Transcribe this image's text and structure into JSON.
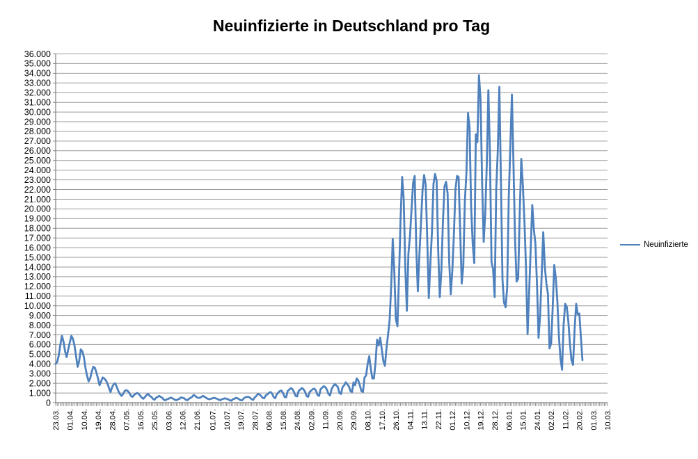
{
  "title": "Neuinfizierte in Deutschland pro Tag",
  "legend": {
    "label": "Neuinfizierte"
  },
  "colors": {
    "line": "#4F81BD",
    "grid": "#9A9A9A",
    "axis": "#808080",
    "text": "#000000",
    "background": "#FFFFFF"
  },
  "chart_data": {
    "type": "line",
    "title": "Neuinfizierte in Deutschland pro Tag",
    "xlabel": "",
    "ylabel": "",
    "ylim": [
      0,
      36000
    ],
    "y_step": 1000,
    "grid": true,
    "legend_position": "right",
    "y_tick_labels": [
      "0",
      "1.000",
      "2.000",
      "3.000",
      "4.000",
      "5.000",
      "6.000",
      "7.000",
      "8.000",
      "9.000",
      "10.000",
      "11.000",
      "12.000",
      "13.000",
      "14.000",
      "15.000",
      "16.000",
      "17.000",
      "18.000",
      "19.000",
      "20.000",
      "21.000",
      "22.000",
      "23.000",
      "24.000",
      "25.000",
      "26.000",
      "27.000",
      "28.000",
      "29.000",
      "30.000",
      "31.000",
      "32.000",
      "33.000",
      "34.000",
      "35.000",
      "36.000"
    ],
    "x_tick_labels": [
      "23.03.",
      "01.04.",
      "10.04.",
      "19.04.",
      "28.04.",
      "07.05.",
      "16.05.",
      "25.05.",
      "03.06.",
      "12.06.",
      "21.06.",
      "01.07.",
      "10.07.",
      "19.07.",
      "28.07.",
      "06.08.",
      "15.08.",
      "24.08.",
      "02.09.",
      "11.09.",
      "20.09.",
      "29.09.",
      "08.10.",
      "17.10.",
      "26.10.",
      "04.11.",
      "13.11.",
      "22.11.",
      "01.12.",
      "10.12.",
      "19.12.",
      "28.12.",
      "06.01.",
      "15.01.",
      "24.01.",
      "02.02.",
      "11.02.",
      "20.02.",
      "01.03.",
      "10.03."
    ],
    "x_tick_indices": [
      0,
      9,
      18,
      27,
      36,
      45,
      54,
      63,
      72,
      81,
      90,
      100,
      109,
      118,
      127,
      136,
      145,
      154,
      163,
      172,
      181,
      190,
      199,
      208,
      217,
      226,
      235,
      244,
      253,
      262,
      271,
      280,
      289,
      298,
      307,
      316,
      325,
      334,
      343,
      352
    ],
    "num_categories": 353,
    "series": [
      {
        "name": "Neuinfizierte",
        "color": "#4F81BD",
        "values": [
          4000,
          4200,
          4900,
          6000,
          6900,
          6300,
          5300,
          4700,
          5500,
          6200,
          6900,
          6600,
          5900,
          4800,
          3700,
          4300,
          5500,
          5300,
          4700,
          3600,
          2800,
          2200,
          2500,
          3200,
          3700,
          3600,
          3100,
          2500,
          1800,
          2200,
          2600,
          2500,
          2300,
          2000,
          1500,
          1100,
          1600,
          1900,
          2000,
          1600,
          1200,
          900,
          700,
          900,
          1200,
          1300,
          1200,
          1000,
          700,
          600,
          800,
          900,
          1000,
          900,
          700,
          500,
          400,
          600,
          800,
          900,
          700,
          600,
          400,
          300,
          500,
          600,
          700,
          600,
          500,
          300,
          250,
          350,
          400,
          500,
          500,
          400,
          300,
          250,
          350,
          400,
          550,
          500,
          450,
          300,
          250,
          400,
          500,
          600,
          800,
          700,
          550,
          500,
          500,
          600,
          700,
          600,
          500,
          400,
          350,
          400,
          450,
          500,
          450,
          400,
          300,
          250,
          350,
          400,
          450,
          400,
          350,
          250,
          200,
          350,
          400,
          500,
          450,
          350,
          250,
          250,
          450,
          550,
          600,
          600,
          500,
          350,
          300,
          550,
          700,
          900,
          850,
          700,
          500,
          450,
          750,
          850,
          1000,
          1100,
          950,
          600,
          450,
          850,
          1050,
          1200,
          1250,
          1000,
          600,
          550,
          1200,
          1350,
          1500,
          1400,
          1100,
          700,
          650,
          1200,
          1350,
          1500,
          1400,
          1150,
          700,
          600,
          1100,
          1250,
          1400,
          1450,
          1250,
          800,
          700,
          1400,
          1550,
          1700,
          1600,
          1350,
          900,
          750,
          1400,
          1700,
          1900,
          1800,
          1600,
          1000,
          900,
          1600,
          1800,
          2100,
          1900,
          1700,
          1200,
          1100,
          2100,
          1800,
          2500,
          2300,
          1800,
          1200,
          1100,
          2600,
          2800,
          4000,
          4800,
          3500,
          2500,
          2500,
          4100,
          6500,
          5900,
          6700,
          5500,
          4300,
          3800,
          5600,
          7000,
          8500,
          12000,
          16900,
          13500,
          8600,
          7900,
          13000,
          19000,
          23300,
          21000,
          14000,
          9500,
          15400,
          17200,
          20000,
          22700,
          23400,
          16000,
          11500,
          15300,
          18500,
          21900,
          23500,
          22500,
          16900,
          10800,
          14400,
          17600,
          22600,
          23600,
          22900,
          15700,
          10900,
          13600,
          18600,
          22300,
          22800,
          21600,
          14600,
          11200,
          13600,
          17300,
          22000,
          23400,
          23300,
          17800,
          12300,
          14100,
          20800,
          23700,
          29900,
          28400,
          20200,
          16400,
          14400,
          27700,
          26900,
          33800,
          31300,
          22800,
          16600,
          19500,
          24700,
          32250,
          25500,
          14500,
          13800,
          10900,
          22000,
          26000,
          32600,
          22900,
          12690,
          10315,
          9850,
          11900,
          21200,
          26400,
          31800,
          24700,
          16900,
          12500,
          12800,
          19600,
          25160,
          22400,
          18700,
          13900,
          7100,
          11400,
          15970,
          20400,
          17900,
          16400,
          12300,
          6700,
          9000,
          13200,
          17600,
          14000,
          12300,
          11200,
          5600,
          6100,
          9700,
          14200,
          12900,
          10500,
          6800,
          4535,
          3400,
          8100,
          10200,
          9900,
          8400,
          6100,
          4400,
          3900,
          7556,
          10200,
          9100,
          9200,
          6800,
          4400
        ]
      }
    ]
  }
}
